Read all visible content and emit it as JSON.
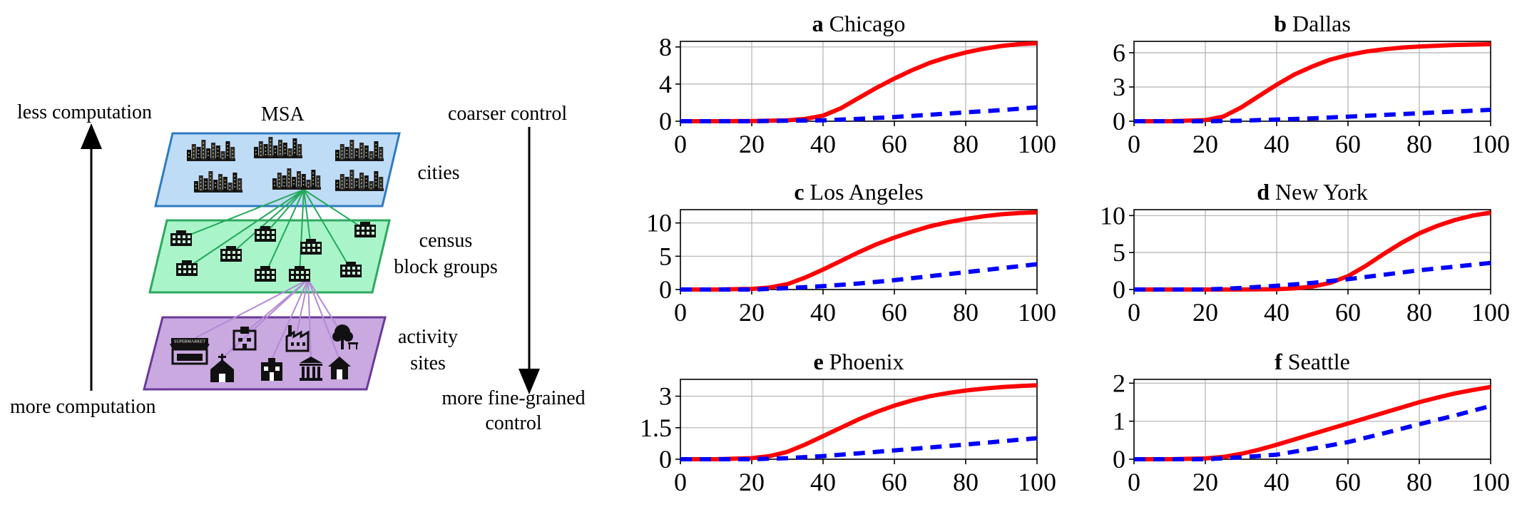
{
  "diagram": {
    "left_top_label": "less computation",
    "left_bottom_label": "more computation",
    "right_top_label": "coarser control",
    "right_bottom_label_line1": "more fine-grained",
    "right_bottom_label_line2": "control",
    "msa_label": "MSA",
    "layers": [
      {
        "label_line1": "cities",
        "label_line2": "",
        "fill": "#bfdcf7",
        "stroke": "#2f7bc2"
      },
      {
        "label_line1": "census",
        "label_line2": "block groups",
        "fill": "#a9f5c9",
        "stroke": "#2fa860"
      },
      {
        "label_line1": "activity",
        "label_line2": "sites",
        "fill": "#c9a9e0",
        "stroke": "#6a3a9a"
      }
    ],
    "supermarket_text": "SUPERMARKET",
    "colors": {
      "city_edges": "#24a85a",
      "cbg_edges": "#b48ad6",
      "icon": "#111111"
    }
  },
  "chart_data": [
    {
      "type": "line",
      "panel_letter": "a",
      "title": "Chicago",
      "xlim": [
        0,
        100
      ],
      "ylim": [
        0,
        8.6
      ],
      "xticks": [
        0,
        20,
        40,
        60,
        80,
        100
      ],
      "yticks": [
        0,
        4,
        8
      ],
      "ytick_labels": [
        "0",
        "4",
        "8"
      ],
      "grid": true,
      "series": [
        {
          "color": "#ff0000",
          "style": "solid",
          "x": [
            0,
            10,
            20,
            30,
            35,
            40,
            45,
            50,
            55,
            60,
            65,
            70,
            75,
            80,
            85,
            90,
            95,
            100
          ],
          "y": [
            0,
            0,
            0.02,
            0.1,
            0.25,
            0.6,
            1.4,
            2.5,
            3.6,
            4.6,
            5.5,
            6.3,
            6.9,
            7.4,
            7.8,
            8.1,
            8.3,
            8.4
          ]
        },
        {
          "color": "#0000ff",
          "style": "dashed",
          "x": [
            0,
            20,
            30,
            40,
            50,
            60,
            70,
            80,
            90,
            100
          ],
          "y": [
            0,
            0,
            0.05,
            0.1,
            0.25,
            0.45,
            0.7,
            0.95,
            1.2,
            1.5
          ]
        }
      ]
    },
    {
      "type": "line",
      "panel_letter": "b",
      "title": "Dallas",
      "xlim": [
        0,
        100
      ],
      "ylim": [
        0,
        7
      ],
      "xticks": [
        0,
        20,
        40,
        60,
        80,
        100
      ],
      "yticks": [
        0,
        3,
        6
      ],
      "ytick_labels": [
        "0",
        "3",
        "6"
      ],
      "grid": true,
      "series": [
        {
          "color": "#ff0000",
          "style": "solid",
          "x": [
            0,
            10,
            20,
            25,
            30,
            35,
            40,
            45,
            50,
            55,
            60,
            65,
            70,
            75,
            80,
            85,
            90,
            95,
            100
          ],
          "y": [
            0,
            0,
            0.1,
            0.4,
            1.2,
            2.2,
            3.2,
            4.1,
            4.8,
            5.4,
            5.8,
            6.1,
            6.3,
            6.45,
            6.55,
            6.62,
            6.68,
            6.72,
            6.75
          ]
        },
        {
          "color": "#0000ff",
          "style": "dashed",
          "x": [
            0,
            20,
            30,
            40,
            50,
            60,
            70,
            80,
            90,
            100
          ],
          "y": [
            0,
            0,
            0.05,
            0.15,
            0.25,
            0.4,
            0.55,
            0.7,
            0.85,
            1.0
          ]
        }
      ]
    },
    {
      "type": "line",
      "panel_letter": "c",
      "title": "Los Angeles",
      "xlim": [
        0,
        100
      ],
      "ylim": [
        0,
        12
      ],
      "xticks": [
        0,
        20,
        40,
        60,
        80,
        100
      ],
      "yticks": [
        0,
        5,
        10
      ],
      "ytick_labels": [
        "0",
        "5",
        "10"
      ],
      "grid": true,
      "series": [
        {
          "color": "#ff0000",
          "style": "solid",
          "x": [
            0,
            10,
            20,
            25,
            30,
            35,
            40,
            45,
            50,
            55,
            60,
            65,
            70,
            75,
            80,
            85,
            90,
            95,
            100
          ],
          "y": [
            0,
            0,
            0.1,
            0.3,
            0.8,
            1.8,
            3.0,
            4.3,
            5.6,
            6.8,
            7.8,
            8.7,
            9.5,
            10.1,
            10.6,
            11.0,
            11.3,
            11.5,
            11.6
          ]
        },
        {
          "color": "#0000ff",
          "style": "dashed",
          "x": [
            0,
            20,
            30,
            40,
            50,
            60,
            70,
            80,
            90,
            100
          ],
          "y": [
            0,
            0,
            0.2,
            0.5,
            0.9,
            1.4,
            2.0,
            2.6,
            3.2,
            3.8
          ]
        }
      ]
    },
    {
      "type": "line",
      "panel_letter": "d",
      "title": "New York",
      "xlim": [
        0,
        100
      ],
      "ylim": [
        0,
        10.8
      ],
      "xticks": [
        0,
        20,
        40,
        60,
        80,
        100
      ],
      "yticks": [
        0,
        5,
        10
      ],
      "ytick_labels": [
        "0",
        "5",
        "10"
      ],
      "grid": true,
      "series": [
        {
          "color": "#ff0000",
          "style": "solid",
          "x": [
            0,
            20,
            30,
            40,
            45,
            50,
            55,
            60,
            65,
            70,
            75,
            80,
            85,
            90,
            95,
            100
          ],
          "y": [
            0,
            0,
            0,
            0.05,
            0.15,
            0.4,
            0.9,
            1.8,
            3.2,
            4.8,
            6.3,
            7.6,
            8.6,
            9.4,
            10.0,
            10.4
          ]
        },
        {
          "color": "#0000ff",
          "style": "dashed",
          "x": [
            0,
            20,
            30,
            40,
            50,
            60,
            70,
            80,
            90,
            100
          ],
          "y": [
            0,
            0,
            0.2,
            0.5,
            0.9,
            1.4,
            2.0,
            2.6,
            3.1,
            3.6
          ]
        }
      ]
    },
    {
      "type": "line",
      "panel_letter": "e",
      "title": "Phoenix",
      "xlim": [
        0,
        100
      ],
      "ylim": [
        0,
        3.8
      ],
      "xticks": [
        0,
        20,
        40,
        60,
        80,
        100
      ],
      "yticks": [
        0,
        1.5,
        3
      ],
      "ytick_labels": [
        "0",
        "1.5",
        "3"
      ],
      "grid": true,
      "series": [
        {
          "color": "#ff0000",
          "style": "solid",
          "x": [
            0,
            10,
            20,
            25,
            30,
            35,
            40,
            45,
            50,
            55,
            60,
            65,
            70,
            75,
            80,
            85,
            90,
            95,
            100
          ],
          "y": [
            0,
            0,
            0.05,
            0.15,
            0.35,
            0.7,
            1.1,
            1.5,
            1.9,
            2.25,
            2.55,
            2.8,
            3.0,
            3.15,
            3.27,
            3.36,
            3.43,
            3.48,
            3.52
          ]
        },
        {
          "color": "#0000ff",
          "style": "dashed",
          "x": [
            0,
            20,
            30,
            40,
            50,
            60,
            70,
            80,
            90,
            100
          ],
          "y": [
            0,
            0,
            0.05,
            0.15,
            0.28,
            0.42,
            0.56,
            0.7,
            0.85,
            1.0
          ]
        }
      ]
    },
    {
      "type": "line",
      "panel_letter": "f",
      "title": "Seattle",
      "xlim": [
        0,
        100
      ],
      "ylim": [
        0,
        2.1
      ],
      "xticks": [
        0,
        20,
        40,
        60,
        80,
        100
      ],
      "yticks": [
        0,
        1,
        2
      ],
      "ytick_labels": [
        "0",
        "1",
        "2"
      ],
      "grid": true,
      "series": [
        {
          "color": "#ff0000",
          "style": "solid",
          "x": [
            0,
            10,
            20,
            25,
            30,
            35,
            40,
            45,
            50,
            55,
            60,
            65,
            70,
            75,
            80,
            85,
            90,
            95,
            100
          ],
          "y": [
            0,
            0,
            0.02,
            0.06,
            0.14,
            0.25,
            0.38,
            0.52,
            0.66,
            0.8,
            0.94,
            1.08,
            1.22,
            1.36,
            1.5,
            1.62,
            1.73,
            1.82,
            1.9
          ]
        },
        {
          "color": "#0000ff",
          "style": "dashed",
          "x": [
            0,
            20,
            30,
            40,
            50,
            60,
            70,
            80,
            90,
            100
          ],
          "y": [
            0,
            0,
            0.05,
            0.12,
            0.28,
            0.45,
            0.68,
            0.92,
            1.15,
            1.4
          ]
        }
      ]
    }
  ]
}
